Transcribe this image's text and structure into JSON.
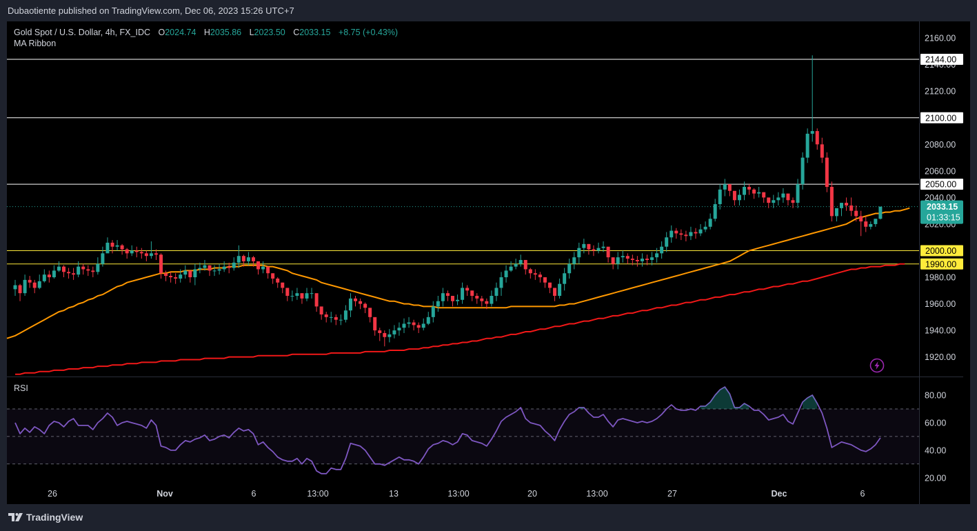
{
  "header": {
    "published_text": "Dubaotiente published on TradingView.com, Dec 06, 2023 15:26 UTC+7"
  },
  "legend": {
    "symbol": "Gold Spot / U.S. Dollar, 4h, FX_IDC",
    "o_label": "O",
    "o_value": "2024.74",
    "h_label": "H",
    "h_value": "2035.86",
    "l_label": "L",
    "l_value": "2023.50",
    "c_label": "C",
    "c_value": "2033.15",
    "change": "+8.75 (+0.43%)",
    "indicator": "MA Ribbon"
  },
  "rsi_panel": {
    "label": "RSI"
  },
  "footer": {
    "brand": "TradingView",
    "logo_icon": "tradingview-logo-icon"
  },
  "colors": {
    "background": "#000000",
    "up": "#26a69a",
    "down": "#f23645",
    "ma_fast": "#ff9800",
    "ma_slow": "#f21818",
    "rsi_line": "#7e57c2",
    "horizontal_level": "#ffffff",
    "yellow_level": "#ffeb3b"
  },
  "chart_data": [
    {
      "type": "candlestick",
      "title": "Gold Spot / U.S. Dollar, 4h, FX_IDC",
      "ylim": [
        1910,
        2170
      ],
      "y_ticks": [
        1920.0,
        1940.0,
        1960.0,
        1980.0,
        2000.0,
        2020.0,
        2040.0,
        2060.0,
        2080.0,
        2100.0,
        2120.0,
        2140.0,
        2160.0
      ],
      "y_tick_labels": [
        "1920.00",
        "1940.00",
        "1960.00",
        "1980.00",
        "2000.00",
        "2020.00",
        "2040.00",
        "2060.00",
        "2080.00",
        "2100.00",
        "2120.00",
        "2140.00",
        "2160.00"
      ],
      "x_tick_labels": [
        "26",
        "Nov",
        "6",
        "13:00",
        "13",
        "13:00",
        "20",
        "13:00",
        "27",
        "Dec",
        "6"
      ],
      "last_price": 2033.15,
      "last_price_label": "2033.15",
      "countdown": "01:33:15",
      "levels": [
        {
          "value": 2144.0,
          "label": "2144.00",
          "style": "white"
        },
        {
          "value": 2100.0,
          "label": "2100.00",
          "style": "white"
        },
        {
          "value": 2050.0,
          "label": "2050.00",
          "style": "white"
        },
        {
          "value": 2000.0,
          "label": "2000.00",
          "style": "yellow"
        },
        {
          "value": 1990.0,
          "label": "1990.00",
          "style": "yellow"
        }
      ],
      "closes": [
        1974,
        1968,
        1978,
        1976,
        1972,
        1977,
        1982,
        1980,
        1985,
        1988,
        1984,
        1983,
        1982,
        1988,
        1986,
        1985,
        1984,
        1990,
        1998,
        2006,
        2003,
        2004,
        2001,
        1998,
        2000,
        1999,
        1998,
        1996,
        1998,
        1997,
        1983,
        1981,
        1980,
        1979,
        1982,
        1985,
        1980,
        1986,
        1987,
        1989,
        1985,
        1985,
        1986,
        1988,
        1987,
        1991,
        1996,
        1992,
        1995,
        1992,
        1986,
        1988,
        1983,
        1979,
        1976,
        1972,
        1966,
        1966,
        1968,
        1964,
        1968,
        1968,
        1958,
        1952,
        1950,
        1950,
        1948,
        1948,
        1955,
        1964,
        1962,
        1960,
        1957,
        1950,
        1940,
        1938,
        1935,
        1937,
        1940,
        1942,
        1945,
        1946,
        1944,
        1942,
        1945,
        1950,
        1958,
        1962,
        1968,
        1966,
        1962,
        1963,
        1972,
        1970,
        1966,
        1964,
        1962,
        1960,
        1966,
        1972,
        1980,
        1985,
        1988,
        1990,
        1993,
        1986,
        1983,
        1982,
        1980,
        1976,
        1972,
        1966,
        1975,
        1983,
        1990,
        1995,
        2002,
        2005,
        2001,
        2000,
        2002,
        2003,
        1995,
        1990,
        1995,
        1996,
        1994,
        1993,
        1992,
        1994,
        1993,
        1995,
        1998,
        2003,
        2010,
        2015,
        2013,
        2012,
        2011,
        2014,
        2013,
        2016,
        2018,
        2024,
        2035,
        2046,
        2050,
        2045,
        2038,
        2042,
        2048,
        2046,
        2043,
        2044,
        2040,
        2036,
        2038,
        2040,
        2043,
        2038,
        2036,
        2050,
        2070,
        2088,
        2090,
        2080,
        2070,
        2048,
        2026,
        2032,
        2036,
        2034,
        2030,
        2026,
        2022,
        2018,
        2020,
        2024,
        2033.15
      ],
      "highs": [
        1978,
        1975,
        1982,
        1981,
        1978,
        1982,
        1986,
        1985,
        1989,
        1992,
        1989,
        1987,
        1987,
        1992,
        1990,
        1989,
        1988,
        1995,
        2003,
        2010,
        2008,
        2008,
        2005,
        2002,
        2004,
        2003,
        2002,
        2000,
        2007,
        2001,
        1998,
        1985,
        1984,
        1983,
        1986,
        1989,
        1984,
        1990,
        1991,
        1993,
        1989,
        1989,
        1990,
        1992,
        1991,
        1995,
        2004,
        1997,
        1999,
        1996,
        1991,
        1992,
        1988,
        1983,
        1980,
        1976,
        1971,
        1970,
        1972,
        1968,
        1972,
        1972,
        1963,
        1957,
        1954,
        1954,
        1952,
        1952,
        1959,
        1968,
        1966,
        1964,
        1961,
        1955,
        1945,
        1942,
        1940,
        1941,
        1944,
        1946,
        1949,
        1950,
        1948,
        1946,
        1949,
        1954,
        1962,
        1966,
        1972,
        1970,
        1966,
        1967,
        1976,
        1974,
        1970,
        1968,
        1966,
        1964,
        1970,
        1976,
        1984,
        1989,
        1992,
        1994,
        1997,
        1990,
        1987,
        1986,
        1984,
        1980,
        1976,
        1970,
        1979,
        1987,
        1994,
        1999,
        2006,
        2009,
        2005,
        2004,
        2006,
        2007,
        1999,
        1994,
        1999,
        2000,
        1998,
        1997,
        1996,
        1998,
        1997,
        1999,
        2002,
        2007,
        2014,
        2019,
        2017,
        2016,
        2015,
        2018,
        2017,
        2020,
        2022,
        2028,
        2039,
        2050,
        2054,
        2049,
        2042,
        2046,
        2052,
        2050,
        2047,
        2048,
        2044,
        2040,
        2042,
        2044,
        2047,
        2042,
        2040,
        2054,
        2074,
        2092,
        2147,
        2092,
        2085,
        2074,
        2052,
        2030,
        2036,
        2040,
        2040,
        2034,
        2030,
        2026,
        2022,
        2024,
        2028,
        2035.86
      ],
      "lows": [
        1966,
        1962,
        1966,
        1972,
        1968,
        1971,
        1976,
        1976,
        1979,
        1984,
        1980,
        1979,
        1978,
        1980,
        1982,
        1981,
        1980,
        1982,
        1988,
        2000,
        1998,
        2000,
        1997,
        1994,
        1996,
        1995,
        1994,
        1992,
        1994,
        1993,
        1979,
        1977,
        1976,
        1975,
        1976,
        1979,
        1976,
        1974,
        1983,
        1985,
        1981,
        1981,
        1982,
        1984,
        1983,
        1985,
        1987,
        1988,
        1989,
        1988,
        1982,
        1983,
        1979,
        1975,
        1972,
        1968,
        1962,
        1962,
        1963,
        1960,
        1962,
        1964,
        1954,
        1948,
        1946,
        1946,
        1944,
        1944,
        1946,
        1950,
        1958,
        1956,
        1953,
        1946,
        1936,
        1932,
        1928,
        1931,
        1934,
        1936,
        1938,
        1942,
        1940,
        1938,
        1940,
        1944,
        1946,
        1954,
        1958,
        1962,
        1958,
        1959,
        1960,
        1966,
        1962,
        1960,
        1958,
        1956,
        1958,
        1962,
        1966,
        1976,
        1984,
        1986,
        1988,
        1982,
        1979,
        1978,
        1976,
        1972,
        1968,
        1962,
        1964,
        1970,
        1979,
        1986,
        1990,
        1998,
        1997,
        1996,
        1998,
        1999,
        1991,
        1986,
        1986,
        1991,
        1990,
        1989,
        1988,
        1988,
        1989,
        1989,
        1991,
        1994,
        1999,
        2006,
        2009,
        2008,
        2007,
        2008,
        2009,
        2011,
        2014,
        2016,
        2022,
        2031,
        2041,
        2041,
        2034,
        2034,
        2038,
        2042,
        2039,
        2040,
        2036,
        2032,
        2032,
        2034,
        2036,
        2034,
        2032,
        2032,
        2046,
        2066,
        2082,
        2076,
        2066,
        2044,
        2022,
        2022,
        2026,
        2030,
        2026,
        2022,
        2011,
        2014,
        2016,
        2018,
        2023.5
      ],
      "ma_fast": [
        1936,
        1938,
        1940,
        1942,
        1944,
        1946,
        1948,
        1950,
        1952,
        1954,
        1955,
        1957,
        1958,
        1960,
        1961,
        1963,
        1964,
        1966,
        1967,
        1969,
        1971,
        1973,
        1974,
        1976,
        1977,
        1978,
        1979,
        1980,
        1981,
        1982,
        1983,
        1983,
        1984,
        1984,
        1984,
        1985,
        1985,
        1985,
        1986,
        1986,
        1986,
        1987,
        1987,
        1987,
        1988,
        1988,
        1988,
        1989,
        1989,
        1989,
        1989,
        1989,
        1988,
        1988,
        1987,
        1986,
        1985,
        1983,
        1982,
        1981,
        1980,
        1979,
        1978,
        1976,
        1975,
        1974,
        1973,
        1972,
        1971,
        1970,
        1969,
        1968,
        1967,
        1966,
        1965,
        1964,
        1963,
        1962,
        1962,
        1961,
        1960,
        1960,
        1959,
        1959,
        1958,
        1958,
        1958,
        1957,
        1957,
        1957,
        1957,
        1957,
        1957,
        1957,
        1957,
        1957,
        1957,
        1957,
        1957,
        1957,
        1957,
        1957,
        1958,
        1958,
        1958,
        1958,
        1958,
        1958,
        1958,
        1958,
        1958,
        1958,
        1959,
        1959,
        1960,
        1960,
        1961,
        1962,
        1963,
        1964,
        1965,
        1966,
        1967,
        1968,
        1969,
        1970,
        1971,
        1972,
        1973,
        1974,
        1975,
        1976,
        1977,
        1978,
        1979,
        1980,
        1981,
        1982,
        1983,
        1984,
        1985,
        1986,
        1987,
        1988,
        1989,
        1990,
        1991,
        1992,
        1994,
        1996,
        1998,
        2000,
        2001,
        2002,
        2003,
        2004,
        2005,
        2006,
        2007,
        2008,
        2009,
        2010,
        2011,
        2012,
        2013,
        2014,
        2015,
        2016,
        2017,
        2018,
        2019,
        2020,
        2022,
        2024,
        2025,
        2026,
        2027,
        2028,
        2028,
        2029,
        2029,
        2030,
        2030,
        2031,
        2032
      ],
      "ma_slow": [
        1907,
        1907,
        1908,
        1908,
        1908,
        1909,
        1909,
        1909,
        1910,
        1910,
        1910,
        1911,
        1911,
        1911,
        1912,
        1912,
        1912,
        1913,
        1913,
        1913,
        1914,
        1914,
        1914,
        1915,
        1915,
        1915,
        1916,
        1916,
        1916,
        1916,
        1917,
        1917,
        1917,
        1917,
        1918,
        1918,
        1918,
        1918,
        1918,
        1919,
        1919,
        1919,
        1919,
        1919,
        1920,
        1920,
        1920,
        1920,
        1920,
        1920,
        1921,
        1921,
        1921,
        1921,
        1921,
        1921,
        1921,
        1922,
        1922,
        1922,
        1922,
        1922,
        1922,
        1922,
        1922,
        1923,
        1923,
        1923,
        1923,
        1923,
        1923,
        1923,
        1924,
        1924,
        1924,
        1924,
        1924,
        1925,
        1925,
        1925,
        1925,
        1926,
        1926,
        1926,
        1927,
        1927,
        1928,
        1928,
        1929,
        1929,
        1930,
        1930,
        1931,
        1931,
        1932,
        1932,
        1933,
        1934,
        1934,
        1935,
        1935,
        1936,
        1937,
        1937,
        1938,
        1939,
        1939,
        1940,
        1941,
        1941,
        1942,
        1943,
        1943,
        1944,
        1945,
        1945,
        1946,
        1947,
        1947,
        1948,
        1949,
        1949,
        1950,
        1951,
        1951,
        1952,
        1953,
        1953,
        1954,
        1955,
        1955,
        1956,
        1957,
        1957,
        1958,
        1959,
        1959,
        1960,
        1961,
        1961,
        1962,
        1963,
        1963,
        1964,
        1965,
        1965,
        1966,
        1967,
        1967,
        1968,
        1969,
        1969,
        1970,
        1971,
        1971,
        1972,
        1973,
        1973,
        1974,
        1975,
        1975,
        1976,
        1977,
        1977,
        1978,
        1979,
        1980,
        1981,
        1982,
        1983,
        1984,
        1985,
        1986,
        1986,
        1987,
        1987,
        1988,
        1988,
        1988,
        1989,
        1989,
        1989,
        1990,
        1990
      ]
    },
    {
      "type": "line",
      "title": "RSI",
      "ylim": [
        12,
        90
      ],
      "y_ticks": [
        20.0,
        40.0,
        60.0,
        80.0
      ],
      "y_tick_labels": [
        "20.00",
        "40.00",
        "60.00",
        "80.00"
      ],
      "bands": [
        30,
        50,
        70
      ],
      "values": [
        60,
        52,
        56,
        53,
        57,
        55,
        52,
        58,
        61,
        60,
        57,
        61,
        63,
        58,
        58,
        58,
        55,
        60,
        63,
        67,
        64,
        58,
        60,
        61,
        60,
        59,
        58,
        56,
        62,
        58,
        43,
        42,
        40,
        40,
        44,
        47,
        46,
        48,
        49,
        51,
        47,
        48,
        50,
        51,
        49,
        53,
        56,
        54,
        55,
        52,
        44,
        46,
        42,
        39,
        35,
        33,
        32,
        32,
        34,
        30,
        34,
        32,
        25,
        23,
        23,
        27,
        26,
        26,
        34,
        45,
        44,
        43,
        40,
        35,
        30,
        30,
        29,
        31,
        33,
        35,
        33,
        33,
        32,
        30,
        35,
        41,
        44,
        45,
        47,
        46,
        44,
        46,
        52,
        51,
        47,
        46,
        45,
        43,
        48,
        54,
        61,
        64,
        66,
        68,
        71,
        63,
        60,
        59,
        58,
        54,
        51,
        47,
        55,
        61,
        66,
        68,
        71,
        71,
        67,
        64,
        64,
        66,
        61,
        57,
        62,
        63,
        62,
        61,
        60,
        61,
        60,
        61,
        63,
        66,
        70,
        73,
        70,
        69,
        69,
        70,
        69,
        72,
        72,
        75,
        80,
        84,
        86,
        81,
        71,
        71,
        74,
        72,
        69,
        69,
        66,
        62,
        63,
        64,
        66,
        61,
        59,
        67,
        75,
        78,
        80,
        74,
        67,
        56,
        42,
        44,
        46,
        45,
        44,
        42,
        40,
        39,
        41,
        44,
        49
      ]
    }
  ]
}
